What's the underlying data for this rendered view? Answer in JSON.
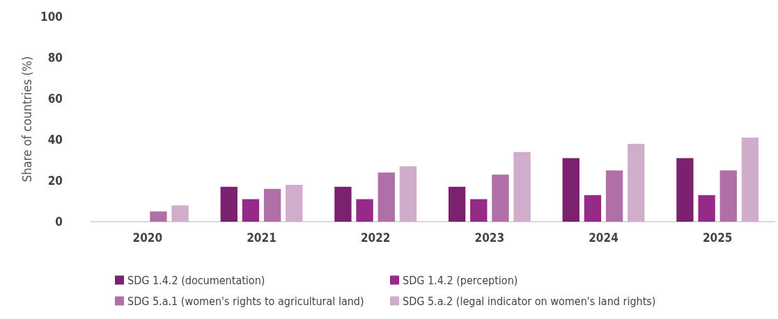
{
  "chart_data": {
    "type": "bar",
    "ylabel": "Share of countries (%)",
    "categories": [
      "2020",
      "2021",
      "2022",
      "2023",
      "2024",
      "2025"
    ],
    "series": [
      {
        "name": "SDG 1.4.2 (documentation)",
        "color": "#7b2170",
        "values": [
          0,
          17,
          17,
          17,
          31,
          31
        ]
      },
      {
        "name": "SDG 1.4.2 (perception)",
        "color": "#952a88",
        "values": [
          0,
          11,
          11,
          11,
          13,
          13
        ]
      },
      {
        "name": "SDG 5.a.1 (women's rights to agricultural land)",
        "color": "#b06fa7",
        "values": [
          5,
          16,
          24,
          23,
          25,
          25
        ]
      },
      {
        "name": "SDG 5.a.2 (legal indicator on women's land rights)",
        "color": "#d0aecb",
        "values": [
          8,
          18,
          27,
          34,
          38,
          41
        ]
      }
    ],
    "ylim": [
      0,
      100
    ],
    "yticks": [
      0,
      20,
      40,
      60,
      80,
      100
    ],
    "grid": false,
    "legend": "bottom"
  }
}
